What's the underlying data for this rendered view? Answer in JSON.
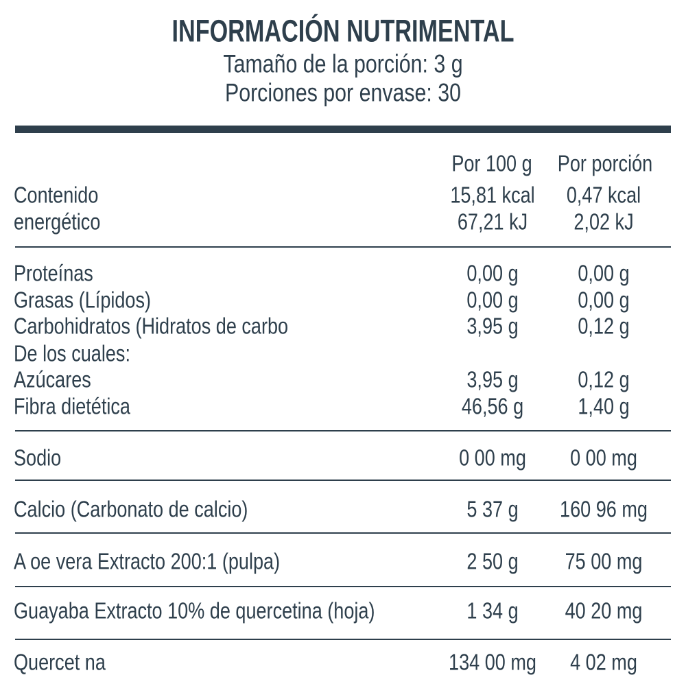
{
  "header": {
    "title": "INFORMACIÓN NUTRIMENTAL",
    "serving_size": "Tamaño de la porción: 3 g",
    "servings": "Porciones por envase: 30"
  },
  "table": {
    "columns": [
      "Por 100 g",
      "Por porción"
    ],
    "sections": [
      [
        {
          "label": "Contenido",
          "per_100g": "15,81 kcal",
          "per_serving": "0,47 kcal"
        },
        {
          "label": "energético",
          "per_100g": "67,21 kJ",
          "per_serving": "2,02 kJ"
        }
      ],
      [
        {
          "label": "Proteínas",
          "per_100g": "0,00 g",
          "per_serving": "0,00 g"
        },
        {
          "label": "Grasas (Lípidos)",
          "per_100g": "0,00 g",
          "per_serving": "0,00 g"
        },
        {
          "label": "Carbohidratos (Hidratos de carbo",
          "per_100g": "3,95 g",
          "per_serving": "0,12 g"
        },
        {
          "label": "De los cuales:"
        },
        {
          "label": "Azúcares",
          "per_100g": "3,95 g",
          "per_serving": "0,12 g"
        },
        {
          "label": "Fibra dietética",
          "per_100g": "46,56 g",
          "per_serving": "1,40 g"
        }
      ],
      [
        {
          "label": "Sodio",
          "per_100g": "0 00 mg",
          "per_serving": "0 00 mg"
        }
      ],
      [
        {
          "label": "Calcio (Carbonato de calcio)",
          "per_100g": "5 37 g",
          "per_serving": "160 96 mg"
        }
      ],
      [
        {
          "label": "A oe vera Extracto 200:1 (pulpa)",
          "per_100g": "2 50 g",
          "per_serving": "75 00 mg"
        }
      ],
      [
        {
          "label": "Guayaba Extracto 10% de quercetina (hoja)",
          "per_100g": "1 34 g",
          "per_serving": "40 20 mg"
        }
      ],
      [
        {
          "label": "Quercet na",
          "per_100g": "134 00 mg",
          "per_serving": "4 02 mg"
        }
      ]
    ]
  }
}
